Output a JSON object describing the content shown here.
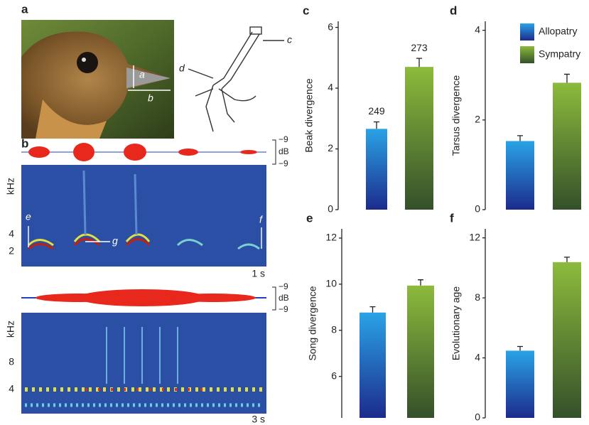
{
  "figure": {
    "panel_a": "a",
    "panel_b": "b",
    "photo_labels": [
      "a",
      "b"
    ],
    "foot_labels": [
      "c",
      "d"
    ],
    "spectrogram_labels": [
      "e",
      "f",
      "g"
    ],
    "top_spectrogram": {
      "y_label": "kHz",
      "yticks": [
        "4",
        "2"
      ],
      "time": "1 s",
      "amp_top": "−9",
      "amp_unit": "dB",
      "amp_bottom": "−9"
    },
    "bottom_spectrogram": {
      "y_label": "kHz",
      "yticks": [
        "8",
        "4"
      ],
      "time": "3 s",
      "amp_top": "−9",
      "amp_unit": "dB",
      "amp_bottom": "−9"
    }
  },
  "legend": [
    {
      "name": "Allopatry",
      "color": "#2aa3e6"
    },
    {
      "name": "Sympatry",
      "color": "#8cbb3c"
    }
  ],
  "chart_data": [
    {
      "type": "bar",
      "panel": "c",
      "y_label": "Beak divergence",
      "values": [
        2.66,
        4.7
      ],
      "errors": [
        0.23,
        0.28
      ],
      "n_labels": [
        "249",
        "273"
      ],
      "ylim": [
        0,
        6.2
      ],
      "yticks": [
        0,
        2,
        4,
        6
      ]
    },
    {
      "type": "bar",
      "panel": "d",
      "y_label": "Tarsus divergence",
      "values": [
        1.53,
        2.83
      ],
      "errors": [
        0.12,
        0.19
      ],
      "ylim": [
        0,
        4.2
      ],
      "yticks": [
        0,
        2,
        4
      ]
    },
    {
      "type": "bar",
      "panel": "e",
      "y_label": "Song divergence",
      "values": [
        8.77,
        9.94
      ],
      "errors": [
        0.25,
        0.25
      ],
      "ylim": [
        4.2,
        12.4
      ],
      "yticks": [
        6,
        8,
        10,
        12
      ]
    },
    {
      "type": "bar",
      "panel": "f",
      "y_label": "Evolutionary age",
      "values": [
        4.48,
        10.38
      ],
      "errors": [
        0.28,
        0.33
      ],
      "ylim": [
        0,
        12.6
      ],
      "yticks": [
        0,
        4,
        8,
        12
      ]
    }
  ]
}
